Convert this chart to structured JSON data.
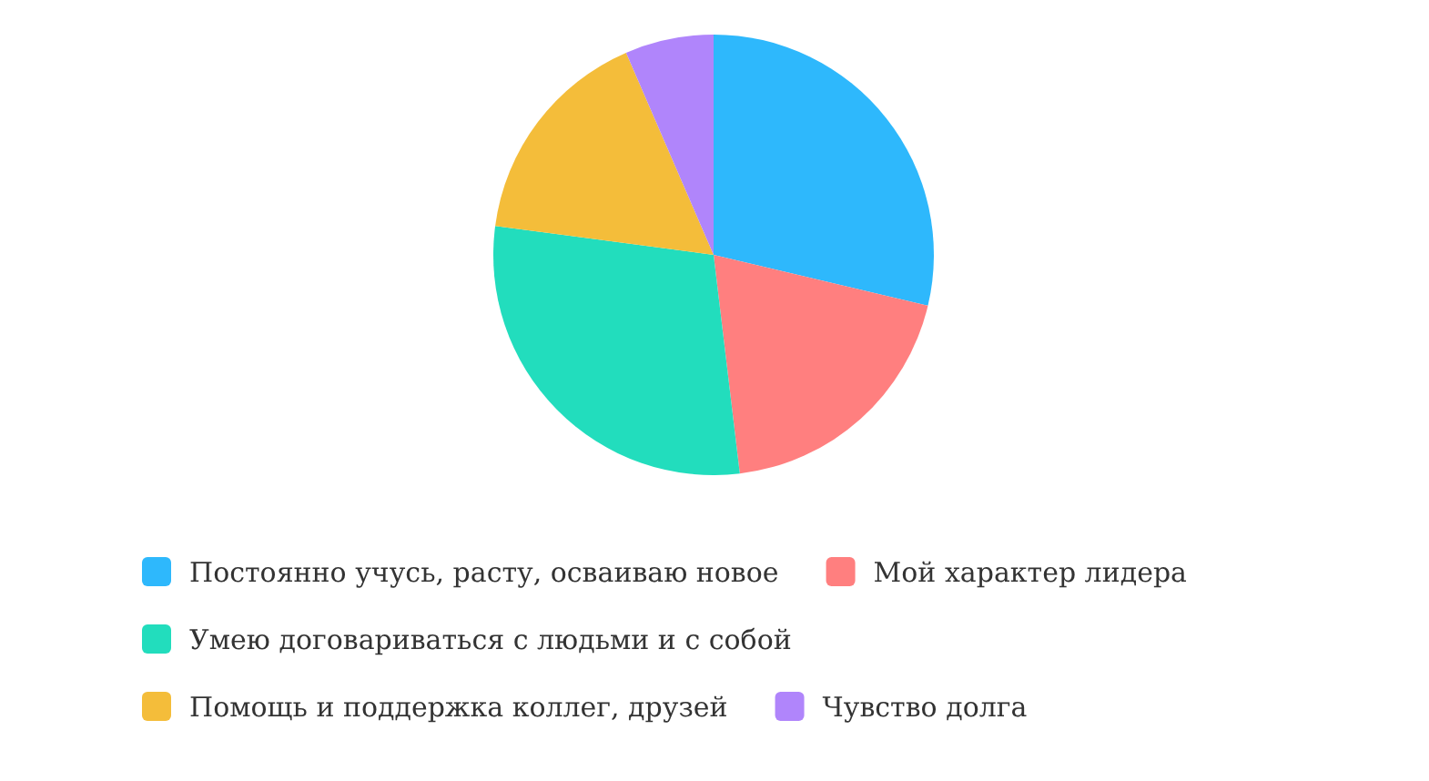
{
  "chart_data": {
    "type": "pie",
    "categories": [
      "Постоянно учусь, расту, осваиваю новое",
      "Мой характер лидера",
      "Умею договариваться с людьми и с собой",
      "Помощь и поддержка коллег, друзей",
      "Чувство долга"
    ],
    "values": [
      28.7,
      19.4,
      29,
      16.4,
      6.5
    ],
    "colors": [
      "#2eb8fc",
      "#ff7f7f",
      "#22ddbd",
      "#f4bd3a",
      "#b085fb"
    ],
    "legend": "bottom"
  }
}
